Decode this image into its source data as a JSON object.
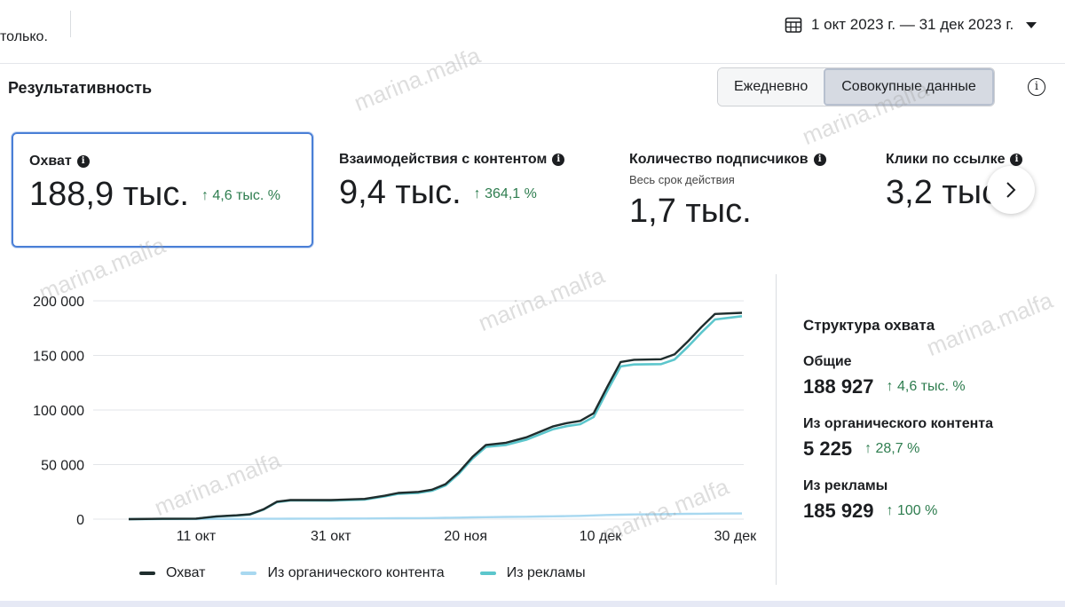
{
  "header": {
    "left_text": "только.",
    "date_range": "1 окт 2023 г. — 31 дек 2023 г.",
    "calendar_icon": "calendar-icon",
    "caret_icon": "caret-down-icon"
  },
  "section": {
    "title": "Результативность",
    "toggle": [
      "Ежедневно",
      "Совокупные данные"
    ],
    "active_toggle": "Совокупные данные"
  },
  "metrics": [
    {
      "label": "Охват",
      "value": "188,9 тыс.",
      "delta": "↑ 4,6 тыс. %"
    },
    {
      "label": "Взаимодействия с контентом",
      "value": "9,4 тыс.",
      "delta": "↑ 364,1 %"
    },
    {
      "label": "Количество подписчиков",
      "sub": "Весь срок действия",
      "value": "1,7 тыс."
    },
    {
      "label": "Клики по ссылке",
      "value": "3,2 тыс."
    }
  ],
  "structure": {
    "title": "Структура охвата",
    "rows": [
      {
        "label": "Общие",
        "value": "188 927",
        "delta": "↑ 4,6 тыс. %"
      },
      {
        "label": "Из органического контента",
        "value": "5 225",
        "delta": "↑ 28,7 %"
      },
      {
        "label": "Из рекламы",
        "value": "185 929",
        "delta": "↑ 100 %"
      }
    ]
  },
  "watermark": "marina.malfa",
  "colors": {
    "reach": "#1f2d2d",
    "organic": "#a8d8f0",
    "ads": "#5cc6cc",
    "positive": "#2e7d4f",
    "selected_border": "#4a7fd6"
  },
  "chart_data": {
    "type": "line",
    "title": "",
    "xlabel": "",
    "ylabel": "",
    "x_ticks": [
      "11 окт",
      "31 окт",
      "20 ноя",
      "10 дек",
      "30 дек"
    ],
    "y_ticks": [
      "0",
      "50 000",
      "100 000",
      "150 000",
      "200 000"
    ],
    "ylim": [
      0,
      200000
    ],
    "x": [
      "1 окт",
      "6 окт",
      "11 окт",
      "14 окт",
      "17 окт",
      "19 окт",
      "21 окт",
      "23 окт",
      "25 окт",
      "27 окт",
      "31 окт",
      "5 ноя",
      "8 ноя",
      "10 ноя",
      "13 ноя",
      "15 ноя",
      "17 ноя",
      "19 ноя",
      "21 ноя",
      "23 ноя",
      "26 ноя",
      "29 ноя",
      "1 дек",
      "3 дек",
      "5 дек",
      "7 дек",
      "9 дек",
      "11 дек",
      "13 дек",
      "15 дек",
      "19 дек",
      "21 дек",
      "23 дек",
      "25 дек",
      "27 дек",
      "31 дек"
    ],
    "series": [
      {
        "name": "Охват",
        "values": [
          0,
          300,
          500,
          2500,
          3500,
          4500,
          9000,
          16000,
          17500,
          17500,
          17500,
          18500,
          21500,
          24000,
          25000,
          27000,
          32000,
          43000,
          57000,
          68000,
          70000,
          75000,
          80000,
          85000,
          88000,
          90000,
          97000,
          121000,
          144000,
          146000,
          146500,
          151000,
          163000,
          176000,
          188000,
          189000
        ]
      },
      {
        "name": "Из органического контента",
        "values": [
          0,
          50,
          100,
          150,
          200,
          250,
          300,
          350,
          400,
          450,
          500,
          600,
          700,
          800,
          900,
          1000,
          1200,
          1400,
          1600,
          1800,
          2000,
          2200,
          2400,
          2600,
          2800,
          3000,
          3400,
          3800,
          4100,
          4300,
          4500,
          4700,
          4900,
          5000,
          5100,
          5225
        ]
      },
      {
        "name": "Из рекламы",
        "values": [
          0,
          250,
          400,
          2350,
          3300,
          4250,
          8700,
          15650,
          17100,
          17050,
          17000,
          17900,
          20800,
          23200,
          24100,
          26000,
          30800,
          41600,
          55400,
          66200,
          68000,
          72800,
          77600,
          82400,
          85200,
          87000,
          93600,
          117200,
          139900,
          141700,
          142000,
          146300,
          158100,
          171000,
          182900,
          185929
        ]
      }
    ]
  }
}
